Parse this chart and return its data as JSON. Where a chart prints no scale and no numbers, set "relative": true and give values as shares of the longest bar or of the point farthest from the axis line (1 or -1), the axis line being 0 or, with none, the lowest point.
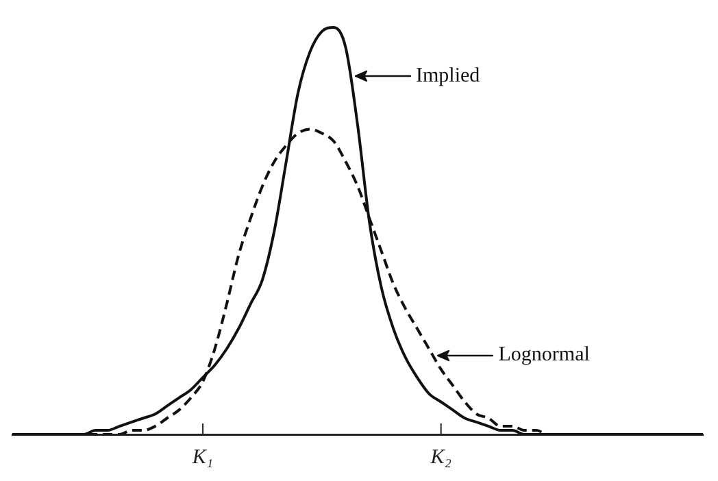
{
  "chart_data": {
    "type": "line",
    "relative": true,
    "legend": "right",
    "grid": false,
    "marker": "none",
    "categories": [
      null,
      null,
      null,
      null,
      null,
      null,
      null,
      null,
      null,
      null,
      null,
      null,
      null,
      null,
      null,
      null,
      "K₁",
      null,
      null,
      null,
      null,
      null,
      null,
      null,
      null,
      null,
      null,
      null,
      null,
      null,
      null,
      null,
      null,
      null,
      null,
      null,
      "K₂",
      null,
      null,
      null,
      null,
      null,
      null,
      null,
      null,
      null,
      null,
      null,
      null,
      null,
      null,
      null,
      null,
      null,
      null,
      null,
      null,
      null,
      null
    ],
    "series": [
      {
        "name": "Implied",
        "color": "#111111",
        "line_style": "solid",
        "values": [
          0,
          0,
          0,
          0,
          0,
          0,
          0,
          0.01,
          0.01,
          0.02,
          0.03,
          0.04,
          0.05,
          0.07,
          0.09,
          0.11,
          0.14,
          0.17,
          0.21,
          0.26,
          0.32,
          0.38,
          0.5,
          0.67,
          0.84,
          0.94,
          0.99,
          1,
          0.95,
          0.76,
          0.52,
          0.36,
          0.26,
          0.19,
          0.14,
          0.1,
          0.08,
          0.06,
          0.04,
          0.03,
          0.02,
          0.01,
          0.01,
          0,
          0,
          0,
          0,
          0,
          0,
          0,
          0,
          0,
          0,
          0,
          0,
          0,
          0,
          0,
          0
        ]
      },
      {
        "name": "Lognormal",
        "color": "#111111",
        "line_style": "dashed",
        "values": [
          0,
          0,
          0,
          0,
          0,
          0,
          0,
          0,
          0,
          0,
          0.01,
          0.01,
          0.02,
          0.04,
          0.06,
          0.09,
          0.13,
          0.21,
          0.32,
          0.44,
          0.53,
          0.61,
          0.67,
          0.71,
          0.74,
          0.75,
          0.74,
          0.72,
          0.67,
          0.61,
          0.53,
          0.45,
          0.37,
          0.31,
          0.26,
          0.21,
          0.16,
          0.12,
          0.08,
          0.05,
          0.04,
          0.02,
          0.02,
          0.01,
          0.01,
          0,
          0,
          0,
          0,
          0,
          0,
          0,
          0,
          0,
          0,
          0,
          0,
          0,
          0
        ]
      }
    ]
  }
}
